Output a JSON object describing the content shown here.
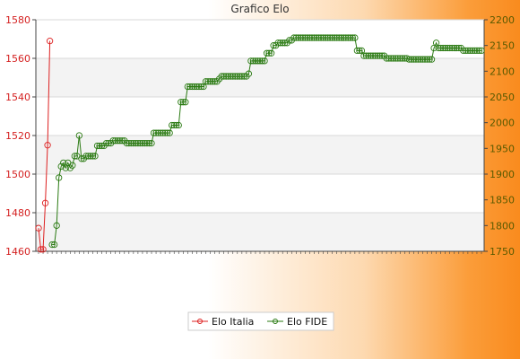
{
  "chart_data": {
    "type": "line",
    "title": "Grafico Elo",
    "grid": true,
    "legend_position": "bottom-center",
    "y_left": {
      "min": 1460,
      "max": 1580,
      "step": 20
    },
    "y_right": {
      "min": 1750,
      "max": 2200,
      "step": 50
    },
    "series": [
      {
        "name": "Elo Italia",
        "axis": "left",
        "color": "#dd2020",
        "points": [
          [
            0,
            1472
          ],
          [
            1,
            1461
          ],
          [
            2,
            1461
          ],
          [
            3,
            1485
          ],
          [
            4,
            1515
          ],
          [
            5,
            1569
          ]
        ]
      },
      {
        "name": "Elo FIDE",
        "axis": "right",
        "color": "#2a7a12",
        "points": [
          [
            6,
            1763
          ],
          [
            7,
            1763
          ],
          [
            8,
            1800
          ],
          [
            9,
            1893
          ],
          [
            10,
            1915
          ],
          [
            11,
            1922
          ],
          [
            12,
            1912
          ],
          [
            13,
            1922
          ],
          [
            14,
            1912
          ],
          [
            15,
            1917
          ],
          [
            16,
            1935
          ],
          [
            17,
            1935
          ],
          [
            18,
            1975
          ],
          [
            19,
            1930
          ],
          [
            20,
            1930
          ],
          [
            21,
            1935
          ],
          [
            22,
            1935
          ],
          [
            23,
            1935
          ],
          [
            24,
            1935
          ],
          [
            25,
            1935
          ],
          [
            26,
            1955
          ],
          [
            27,
            1955
          ],
          [
            28,
            1955
          ],
          [
            29,
            1955
          ],
          [
            30,
            1960
          ],
          [
            31,
            1960
          ],
          [
            32,
            1960
          ],
          [
            33,
            1965
          ],
          [
            34,
            1965
          ],
          [
            35,
            1965
          ],
          [
            36,
            1965
          ],
          [
            37,
            1965
          ],
          [
            38,
            1965
          ],
          [
            39,
            1960
          ],
          [
            40,
            1960
          ],
          [
            41,
            1960
          ],
          [
            42,
            1960
          ],
          [
            43,
            1960
          ],
          [
            44,
            1960
          ],
          [
            45,
            1960
          ],
          [
            46,
            1960
          ],
          [
            47,
            1960
          ],
          [
            48,
            1960
          ],
          [
            49,
            1960
          ],
          [
            50,
            1960
          ],
          [
            51,
            1980
          ],
          [
            52,
            1980
          ],
          [
            53,
            1980
          ],
          [
            54,
            1980
          ],
          [
            55,
            1980
          ],
          [
            56,
            1980
          ],
          [
            57,
            1980
          ],
          [
            58,
            1980
          ],
          [
            59,
            1995
          ],
          [
            60,
            1995
          ],
          [
            61,
            1995
          ],
          [
            62,
            1995
          ],
          [
            63,
            2040
          ],
          [
            64,
            2040
          ],
          [
            65,
            2040
          ],
          [
            66,
            2070
          ],
          [
            67,
            2070
          ],
          [
            68,
            2070
          ],
          [
            69,
            2070
          ],
          [
            70,
            2070
          ],
          [
            71,
            2070
          ],
          [
            72,
            2070
          ],
          [
            73,
            2070
          ],
          [
            74,
            2080
          ],
          [
            75,
            2080
          ],
          [
            76,
            2080
          ],
          [
            77,
            2080
          ],
          [
            78,
            2080
          ],
          [
            79,
            2080
          ],
          [
            80,
            2085
          ],
          [
            81,
            2090
          ],
          [
            82,
            2090
          ],
          [
            83,
            2090
          ],
          [
            84,
            2090
          ],
          [
            85,
            2090
          ],
          [
            86,
            2090
          ],
          [
            87,
            2090
          ],
          [
            88,
            2090
          ],
          [
            89,
            2090
          ],
          [
            90,
            2090
          ],
          [
            91,
            2090
          ],
          [
            92,
            2090
          ],
          [
            93,
            2095
          ],
          [
            94,
            2120
          ],
          [
            95,
            2120
          ],
          [
            96,
            2120
          ],
          [
            97,
            2120
          ],
          [
            98,
            2120
          ],
          [
            99,
            2120
          ],
          [
            100,
            2120
          ],
          [
            101,
            2135
          ],
          [
            102,
            2135
          ],
          [
            103,
            2135
          ],
          [
            104,
            2150
          ],
          [
            105,
            2150
          ],
          [
            106,
            2155
          ],
          [
            107,
            2155
          ],
          [
            108,
            2155
          ],
          [
            109,
            2155
          ],
          [
            110,
            2155
          ],
          [
            111,
            2160
          ],
          [
            112,
            2160
          ],
          [
            113,
            2165
          ],
          [
            114,
            2165
          ],
          [
            115,
            2165
          ],
          [
            116,
            2165
          ],
          [
            117,
            2165
          ],
          [
            118,
            2165
          ],
          [
            119,
            2165
          ],
          [
            120,
            2165
          ],
          [
            121,
            2165
          ],
          [
            122,
            2165
          ],
          [
            123,
            2165
          ],
          [
            124,
            2165
          ],
          [
            125,
            2165
          ],
          [
            126,
            2165
          ],
          [
            127,
            2165
          ],
          [
            128,
            2165
          ],
          [
            129,
            2165
          ],
          [
            130,
            2165
          ],
          [
            131,
            2165
          ],
          [
            132,
            2165
          ],
          [
            133,
            2165
          ],
          [
            134,
            2165
          ],
          [
            135,
            2165
          ],
          [
            136,
            2165
          ],
          [
            137,
            2165
          ],
          [
            138,
            2165
          ],
          [
            139,
            2165
          ],
          [
            140,
            2165
          ],
          [
            141,
            2140
          ],
          [
            142,
            2140
          ],
          [
            143,
            2140
          ],
          [
            144,
            2130
          ],
          [
            145,
            2130
          ],
          [
            146,
            2130
          ],
          [
            147,
            2130
          ],
          [
            148,
            2130
          ],
          [
            149,
            2130
          ],
          [
            150,
            2130
          ],
          [
            151,
            2130
          ],
          [
            152,
            2130
          ],
          [
            153,
            2130
          ],
          [
            154,
            2125
          ],
          [
            155,
            2125
          ],
          [
            156,
            2125
          ],
          [
            157,
            2125
          ],
          [
            158,
            2125
          ],
          [
            159,
            2125
          ],
          [
            160,
            2125
          ],
          [
            161,
            2125
          ],
          [
            162,
            2125
          ],
          [
            163,
            2125
          ],
          [
            164,
            2123
          ],
          [
            165,
            2123
          ],
          [
            166,
            2123
          ],
          [
            167,
            2123
          ],
          [
            168,
            2123
          ],
          [
            169,
            2123
          ],
          [
            170,
            2123
          ],
          [
            171,
            2123
          ],
          [
            172,
            2123
          ],
          [
            173,
            2123
          ],
          [
            174,
            2123
          ],
          [
            175,
            2145
          ],
          [
            176,
            2155
          ],
          [
            177,
            2145
          ],
          [
            178,
            2145
          ],
          [
            179,
            2145
          ],
          [
            180,
            2145
          ],
          [
            181,
            2145
          ],
          [
            182,
            2145
          ],
          [
            183,
            2145
          ],
          [
            184,
            2145
          ],
          [
            185,
            2145
          ],
          [
            186,
            2145
          ],
          [
            187,
            2145
          ],
          [
            188,
            2140
          ],
          [
            189,
            2140
          ],
          [
            190,
            2140
          ],
          [
            191,
            2140
          ],
          [
            192,
            2140
          ],
          [
            193,
            2140
          ],
          [
            194,
            2140
          ],
          [
            195,
            2140
          ],
          [
            196,
            2140
          ]
        ]
      }
    ]
  }
}
